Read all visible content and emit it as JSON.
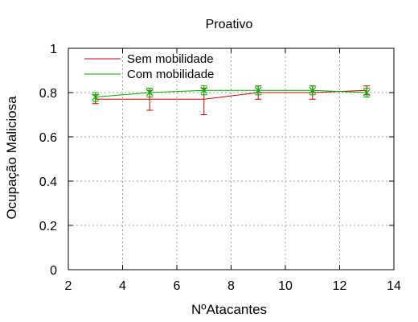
{
  "chart_data": {
    "type": "line",
    "title": "Proativo",
    "xlabel": "NºAtacantes",
    "ylabel": "Ocupação Maliciosa",
    "xlim": [
      2,
      14
    ],
    "ylim": [
      0,
      1
    ],
    "xticks": [
      2,
      4,
      6,
      8,
      10,
      12,
      14
    ],
    "yticks": [
      0,
      0.2,
      0.4,
      0.6,
      0.8,
      1
    ],
    "ytick_labels": [
      "0",
      "0.2",
      "0.4",
      "0.6",
      "0.8",
      "1"
    ],
    "grid": true,
    "legend_position": "top-left",
    "series": [
      {
        "name": "Sem mobilidade",
        "color": "#cc0000",
        "style": "errorbar",
        "x": [
          3,
          5,
          7,
          9,
          11,
          13
        ],
        "y": [
          0.77,
          0.77,
          0.77,
          0.8,
          0.8,
          0.81
        ],
        "err_low": [
          0.75,
          0.72,
          0.7,
          0.77,
          0.77,
          0.79
        ],
        "err_high": [
          0.79,
          0.81,
          0.82,
          0.83,
          0.83,
          0.83
        ]
      },
      {
        "name": "Com mobilidade",
        "color": "#00aa00",
        "style": "errorbar-x",
        "x": [
          3,
          5,
          7,
          9,
          11,
          13
        ],
        "y": [
          0.78,
          0.8,
          0.81,
          0.81,
          0.81,
          0.8
        ],
        "err_low": [
          0.76,
          0.78,
          0.79,
          0.79,
          0.79,
          0.78
        ],
        "err_high": [
          0.8,
          0.82,
          0.83,
          0.83,
          0.83,
          0.82
        ]
      }
    ]
  }
}
